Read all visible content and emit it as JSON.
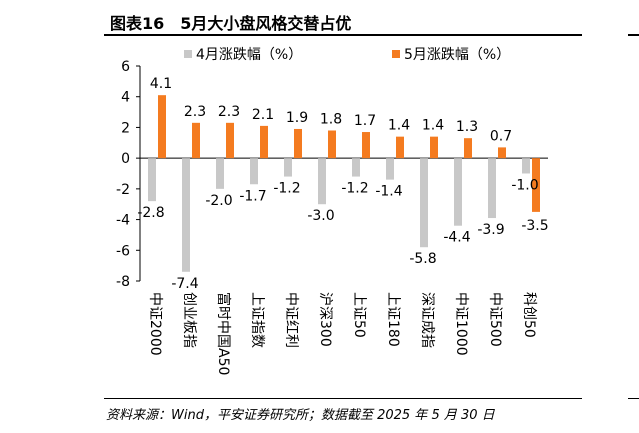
{
  "page_title": "图表16　5月大小盘风格交替占优",
  "source_note": "资料来源：Wind，平安证券研究所；数据截至 2025 年 5 月 30 日",
  "chart_data": {
    "type": "bar",
    "title": "5月大小盘风格交替占优",
    "categories": [
      "中证2000",
      "创业板指",
      "富时中国A50",
      "上证指数",
      "中证红利",
      "沪深300",
      "上证50",
      "上证180",
      "深证成指",
      "中证1000",
      "中证500",
      "科创50"
    ],
    "series": [
      {
        "name": "4月涨跌幅（%）",
        "color": "#c8c8c8",
        "values": [
          -2.8,
          -7.4,
          -2.0,
          -1.7,
          -1.2,
          -3.0,
          -1.2,
          -1.4,
          -5.8,
          -4.4,
          -3.9,
          -1.0
        ]
      },
      {
        "name": "5月涨跌幅（%）",
        "color": "#f47b20",
        "values": [
          4.1,
          2.3,
          2.3,
          2.1,
          1.9,
          1.8,
          1.7,
          1.4,
          1.4,
          1.3,
          0.7,
          -3.5
        ]
      }
    ],
    "ylim": [
      -8,
      6
    ],
    "yticks": [
      6,
      4,
      2,
      0,
      -2,
      -4,
      -6,
      -8
    ],
    "legend_position": "top",
    "xlabel": "",
    "ylabel": "",
    "grid": false
  }
}
